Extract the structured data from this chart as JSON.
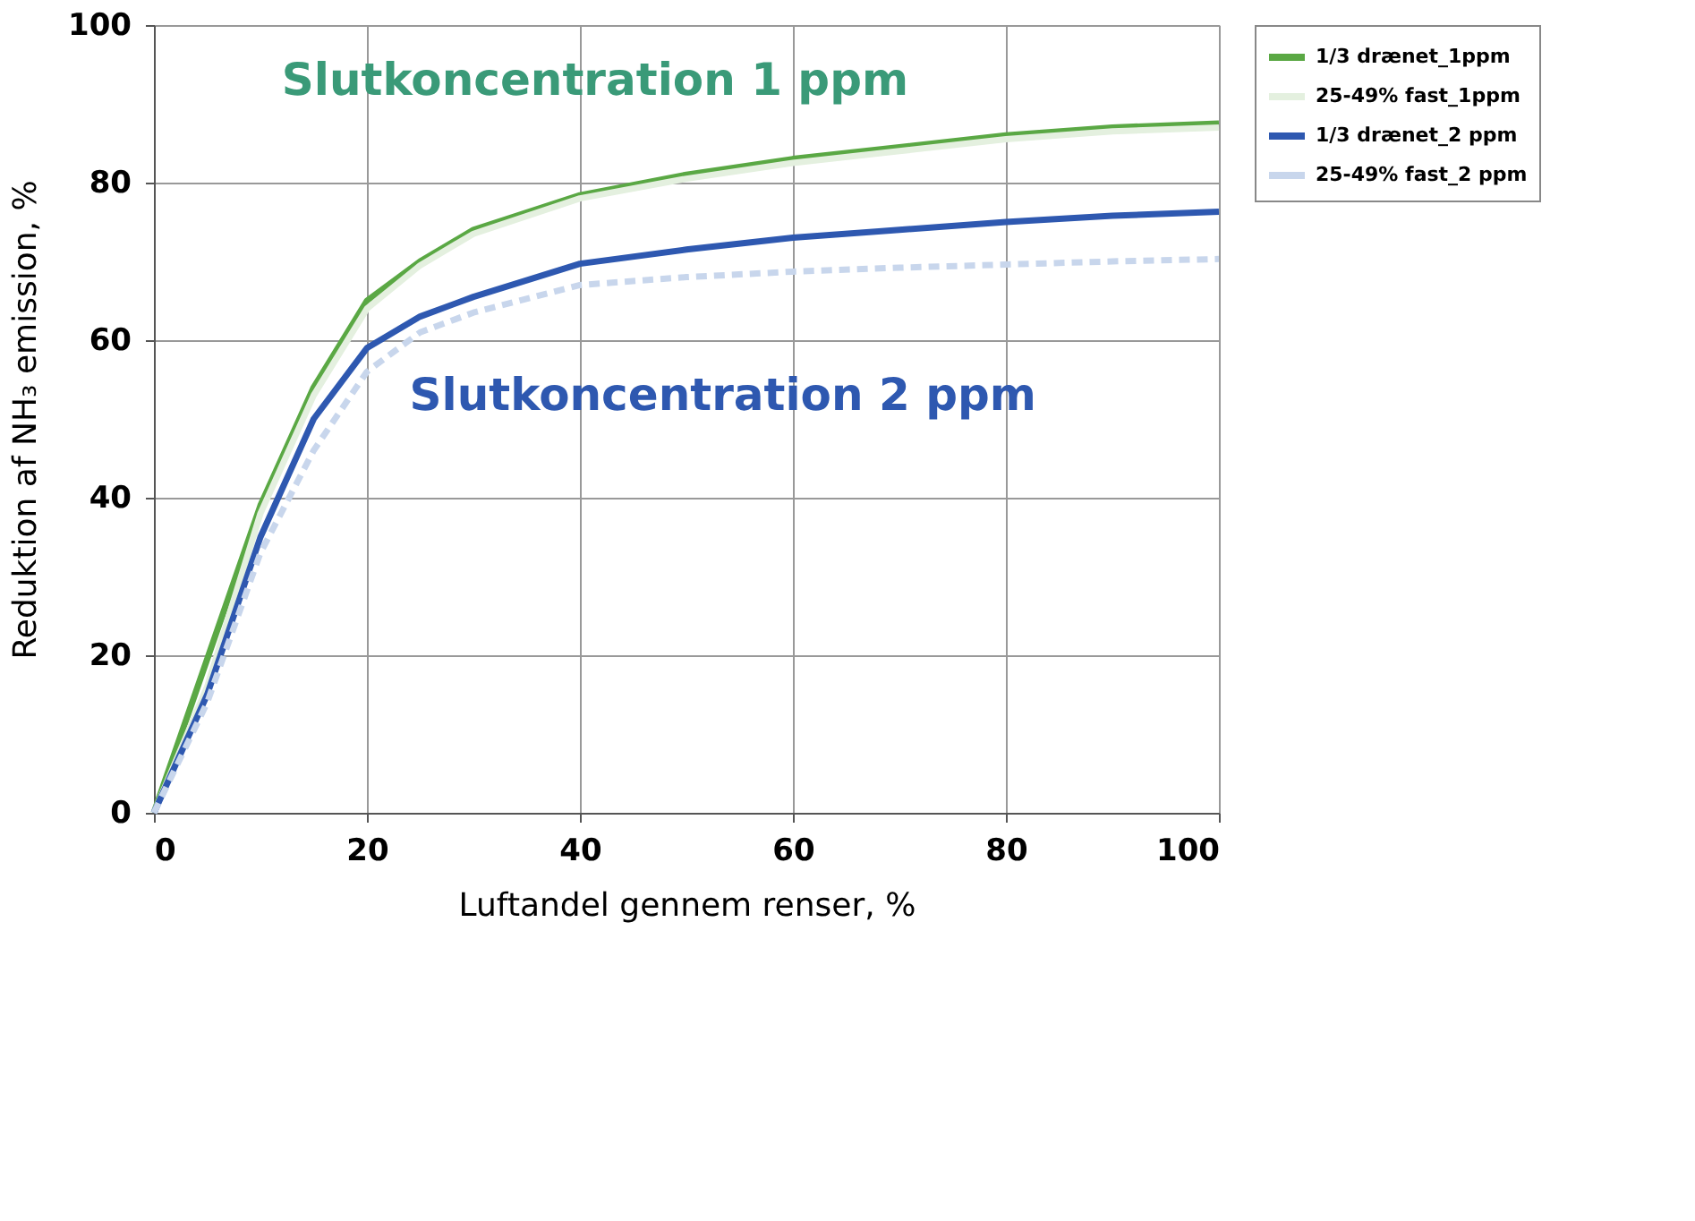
{
  "chart_data": {
    "type": "line",
    "xlabel": "Luftandel gennem renser, %",
    "ylabel": "Reduktion af NH₃ emission, %",
    "x": [
      0,
      5,
      10,
      15,
      20,
      25,
      30,
      40,
      50,
      60,
      70,
      80,
      90,
      100
    ],
    "series": [
      {
        "name": "1/3 drænet_1ppm",
        "color": "#5aa844",
        "line_style": "solid",
        "values": [
          0,
          null,
          39,
          54,
          65,
          70,
          74,
          78.4,
          81,
          83,
          84.5,
          86,
          87,
          87.5
        ]
      },
      {
        "name": "25-49% fast_1ppm",
        "color": "#e4f0df",
        "line_style": "solid",
        "values": [
          0,
          16,
          38,
          53,
          64,
          69.5,
          73.5,
          78,
          80.5,
          82.5,
          84,
          85.5,
          86.5,
          87
        ]
      },
      {
        "name": "1/3 drænet_2 ppm",
        "color": "#2e58b0",
        "line_style": "solid",
        "values": [
          0,
          15,
          35,
          50,
          59,
          63,
          65.5,
          69.7,
          71.5,
          73,
          74,
          75,
          75.8,
          76.3
        ]
      },
      {
        "name": "25-49% fast_2 ppm",
        "color": "#c8d6ec",
        "line_style": "dashed",
        "values": [
          0,
          14,
          33,
          46,
          56,
          61,
          63.5,
          67,
          68,
          68.7,
          69.2,
          69.6,
          70,
          70.3
        ]
      }
    ],
    "annotations": [
      "Slutkoncentration 1 ppm",
      "Slutkoncentration 2 ppm"
    ],
    "xlim": [
      0,
      100
    ],
    "xticks": [
      0,
      20,
      40,
      60,
      80,
      100
    ],
    "ylim": [
      0,
      100
    ],
    "yticks": [
      0,
      20,
      40,
      60,
      80,
      100
    ],
    "grid": true,
    "legend": "right",
    "marker": "none"
  }
}
